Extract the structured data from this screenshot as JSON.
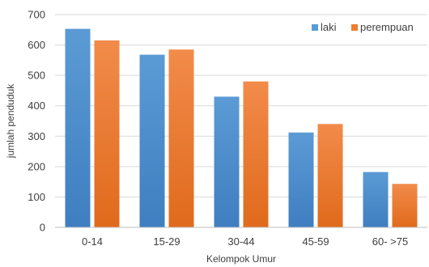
{
  "chart_data": {
    "type": "bar",
    "title": "",
    "xlabel": "Kelompok Umur",
    "ylabel": "jumlah penduduk",
    "categories": [
      "0-14",
      "15-29",
      "30-44",
      "45-59",
      "60- >75"
    ],
    "series": [
      {
        "name": "laki",
        "values": [
          653,
          568,
          430,
          312,
          182
        ],
        "color": "#5B9BD5"
      },
      {
        "name": "perempuan",
        "values": [
          615,
          585,
          480,
          340,
          143
        ],
        "color": "#ED7D31"
      }
    ],
    "ylim": [
      0,
      700
    ],
    "yticks": [
      "0",
      "100",
      "200",
      "300",
      "400",
      "500",
      "600",
      "700"
    ],
    "grid": true,
    "legend": "top-right"
  }
}
